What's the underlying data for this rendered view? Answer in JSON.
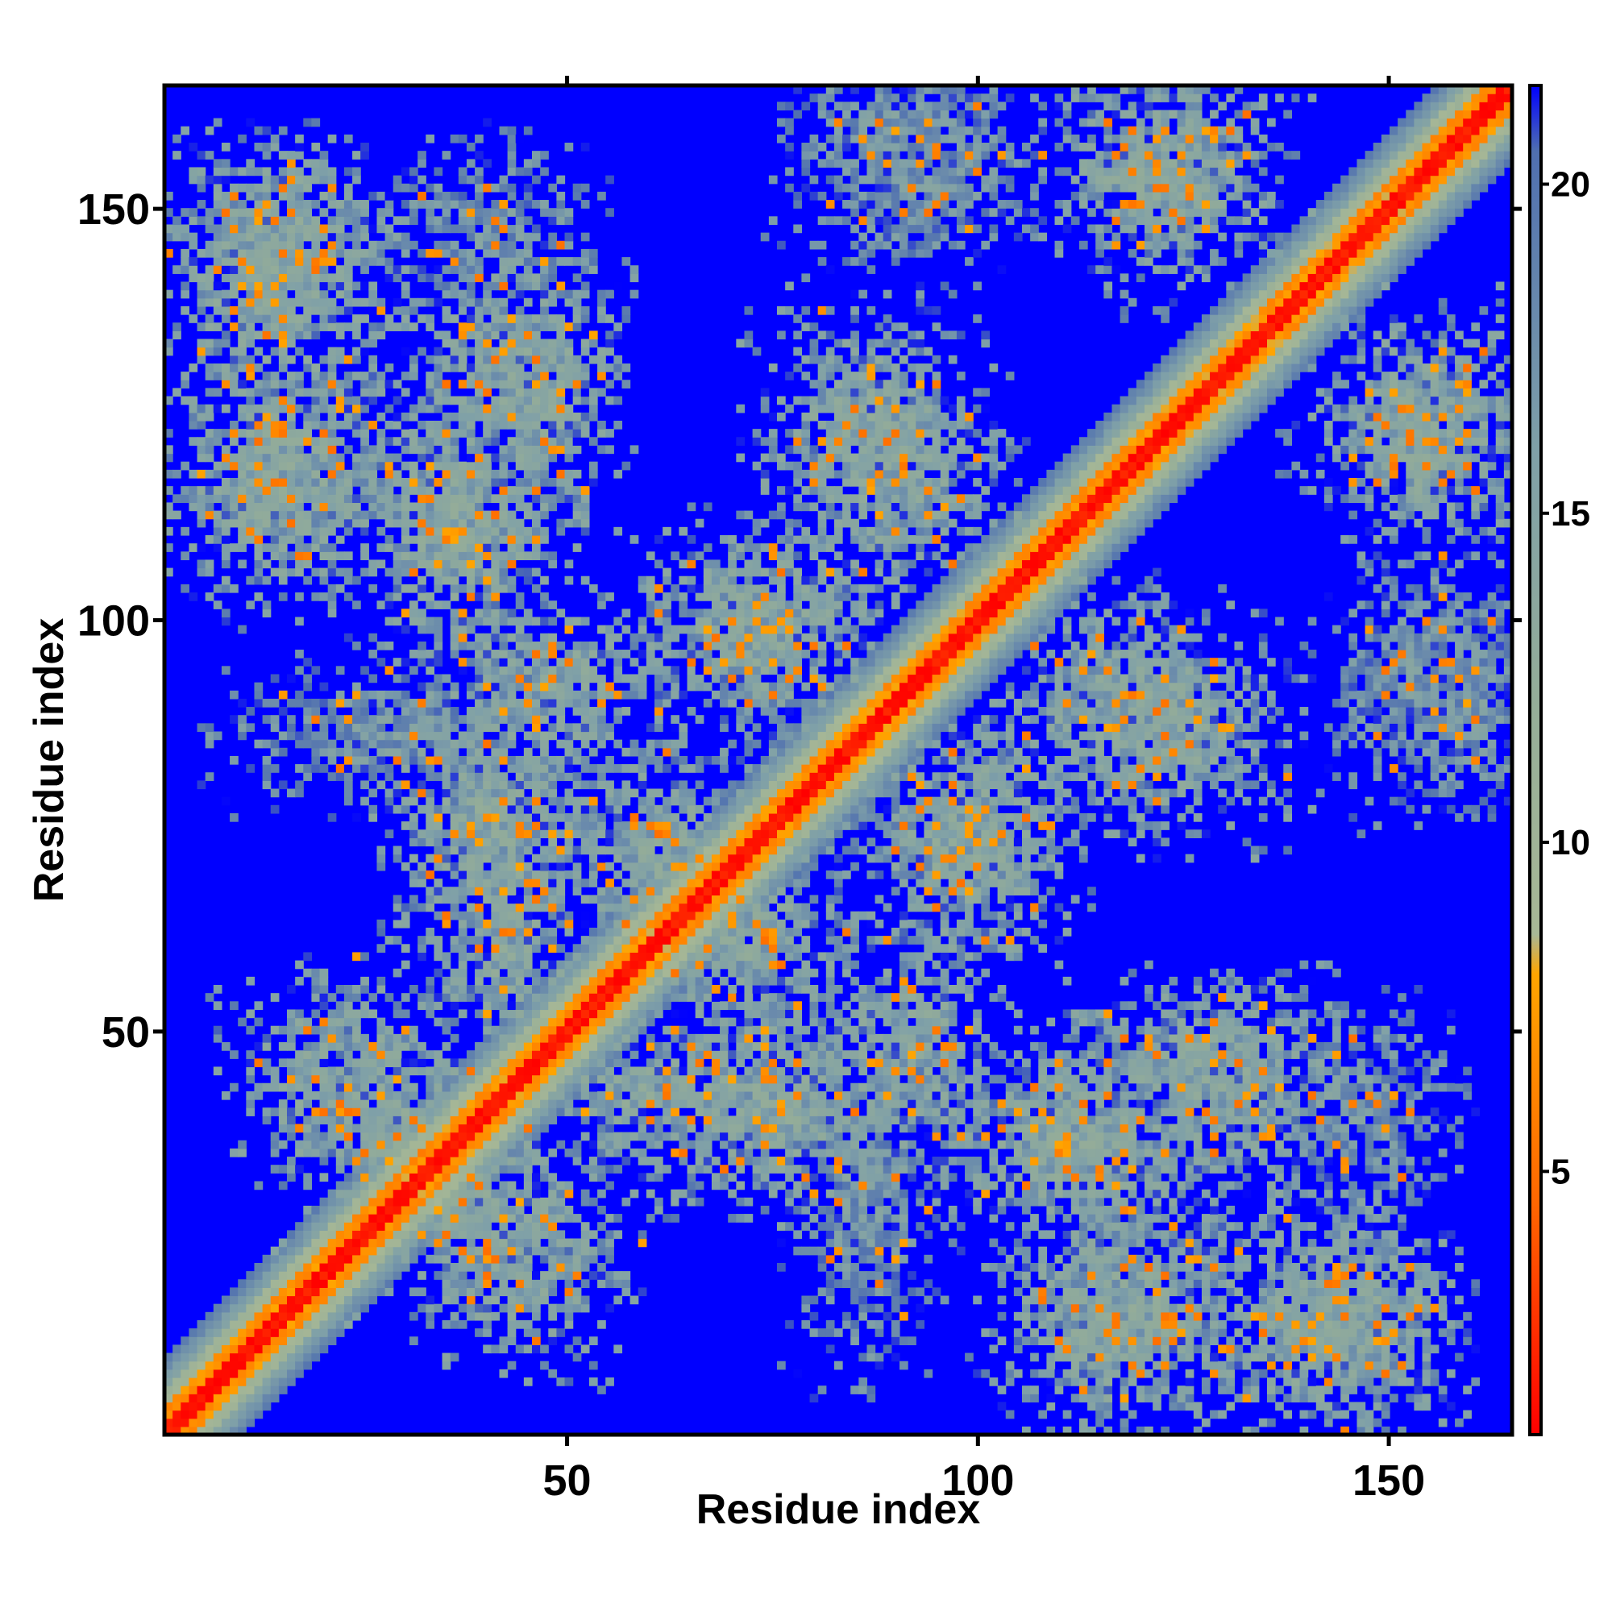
{
  "chart_data": {
    "type": "heatmap",
    "title": "",
    "xlabel": "Residue index",
    "ylabel": "Residue index",
    "xlim": [
      1,
      165
    ],
    "ylim": [
      1,
      165
    ],
    "x_ticks": [
      50,
      100,
      150
    ],
    "y_ticks": [
      50,
      100,
      150
    ],
    "x_tick_labels": [
      "50",
      "100",
      "150"
    ],
    "y_tick_labels": [
      "50",
      "100",
      "150"
    ],
    "grid": false,
    "colorbar": {
      "range": [
        1,
        21.5
      ],
      "ticks": [
        5,
        10,
        15,
        20
      ],
      "tick_labels": [
        "5",
        "10",
        "15",
        "20"
      ],
      "stops": [
        {
          "value": 1,
          "color": "#ff0000"
        },
        {
          "value": 4.5,
          "color": "#ff6600"
        },
        {
          "value": 8,
          "color": "#ffa500"
        },
        {
          "value": 8.6,
          "color": "#a8b896"
        },
        {
          "value": 12,
          "color": "#95ad98"
        },
        {
          "value": 16,
          "color": "#7fa0a8"
        },
        {
          "value": 20.5,
          "color": "#4f6fb0"
        },
        {
          "value": 21.5,
          "color": "#0000ff"
        }
      ]
    },
    "background_value": 21.5,
    "background_color": "#0000ff",
    "diagonal": {
      "line": [
        1,
        165
      ],
      "core_value": 1,
      "mid_value": 6,
      "halo_value": 13
    },
    "clusters": [
      {
        "x": 14,
        "y": 148,
        "sx": 7,
        "sy": 6,
        "value": 15
      },
      {
        "x": 16,
        "y": 117,
        "sx": 7,
        "sy": 8,
        "value": 15
      },
      {
        "x": 43,
        "y": 132,
        "sx": 7,
        "sy": 6,
        "value": 15
      },
      {
        "x": 36,
        "y": 113,
        "sx": 6,
        "sy": 7,
        "value": 15
      },
      {
        "x": 48,
        "y": 92,
        "sx": 8,
        "sy": 6,
        "value": 15
      },
      {
        "x": 27,
        "y": 86,
        "sx": 10,
        "sy": 5,
        "value": 17
      },
      {
        "x": 42,
        "y": 72,
        "sx": 7,
        "sy": 7,
        "value": 15
      },
      {
        "x": 22,
        "y": 45,
        "sx": 7,
        "sy": 7,
        "value": 15
      },
      {
        "x": 38,
        "y": 28,
        "sx": 8,
        "sy": 6,
        "value": 15
      },
      {
        "x": 59,
        "y": 42,
        "sx": 7,
        "sy": 5,
        "value": 15
      },
      {
        "x": 76,
        "y": 40,
        "sx": 7,
        "sy": 6,
        "value": 15
      },
      {
        "x": 72,
        "y": 61,
        "sx": 8,
        "sy": 6,
        "value": 15
      },
      {
        "x": 74,
        "y": 100,
        "sx": 8,
        "sy": 6,
        "value": 15
      },
      {
        "x": 87,
        "y": 124,
        "sx": 7,
        "sy": 8,
        "value": 15
      },
      {
        "x": 91,
        "y": 161,
        "sx": 7,
        "sy": 4,
        "value": 17
      },
      {
        "x": 123,
        "y": 155,
        "sx": 8,
        "sy": 6,
        "value": 15
      },
      {
        "x": 155,
        "y": 124,
        "sx": 8,
        "sy": 6,
        "value": 15
      },
      {
        "x": 153,
        "y": 92,
        "sx": 6,
        "sy": 8,
        "value": 17
      },
      {
        "x": 98,
        "y": 72,
        "sx": 7,
        "sy": 7,
        "value": 15
      },
      {
        "x": 118,
        "y": 90,
        "sx": 8,
        "sy": 7,
        "value": 15
      },
      {
        "x": 110,
        "y": 36,
        "sx": 9,
        "sy": 7,
        "value": 15
      },
      {
        "x": 127,
        "y": 47,
        "sx": 8,
        "sy": 5,
        "value": 15
      },
      {
        "x": 118,
        "y": 14,
        "sx": 8,
        "sy": 7,
        "value": 15
      },
      {
        "x": 141,
        "y": 14,
        "sx": 9,
        "sy": 8,
        "value": 15
      },
      {
        "x": 147,
        "y": 40,
        "sx": 6,
        "sy": 7,
        "value": 17
      }
    ]
  }
}
